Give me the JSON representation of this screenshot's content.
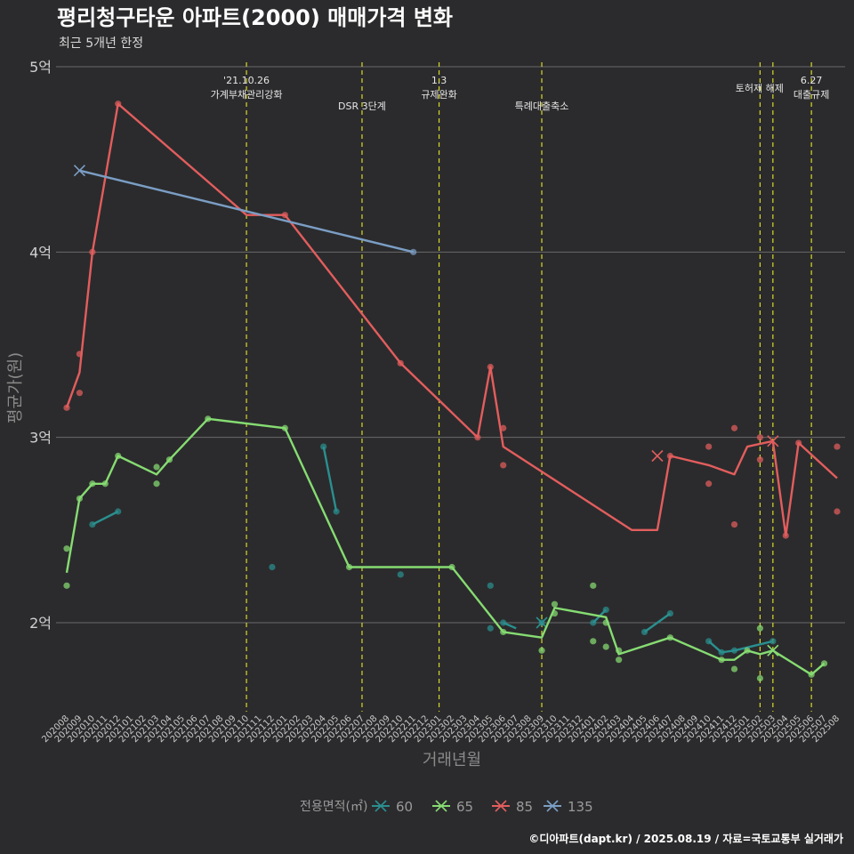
{
  "chart_data": {
    "type": "line",
    "title": "평리청구타운 아파트(2000) 매매가격 변화",
    "subtitle": "최근 5개년 한정",
    "xlabel": "거래년월",
    "ylabel": "평균가(원)",
    "caption": "©디아파트(dapt.kr) / 2025.08.19 / 자료=국토교통부 실거래가",
    "legend": {
      "title": "전용면적(㎡)",
      "position": "bottom"
    },
    "ylim": [
      1.55,
      5.0
    ],
    "y_ticks": [
      {
        "value": 2,
        "label": "2억"
      },
      {
        "value": 3,
        "label": "3억"
      },
      {
        "value": 4,
        "label": "4억"
      },
      {
        "value": 5,
        "label": "5억"
      }
    ],
    "categories": [
      "202008",
      "202009",
      "202010",
      "202011",
      "202012",
      "202101",
      "202102",
      "202103",
      "202104",
      "202105",
      "202106",
      "202107",
      "202108",
      "202109",
      "202110",
      "202111",
      "202112",
      "202201",
      "202202",
      "202203",
      "202204",
      "202205",
      "202206",
      "202207",
      "202208",
      "202209",
      "202210",
      "202211",
      "202212",
      "202301",
      "202302",
      "202303",
      "202304",
      "202305",
      "202306",
      "202307",
      "202308",
      "202309",
      "202310",
      "202311",
      "202312",
      "202401",
      "202402",
      "202403",
      "202404",
      "202405",
      "202406",
      "202407",
      "202408",
      "202409",
      "202410",
      "202411",
      "202412",
      "202501",
      "202502",
      "202503",
      "202504",
      "202505",
      "202506",
      "202507",
      "202508"
    ],
    "annotations": [
      {
        "x": "202110",
        "lines": [
          "'21.10.26",
          "가계부채관리강화"
        ],
        "row": 0
      },
      {
        "x": "202207",
        "lines": [
          "DSR 3단계"
        ],
        "row": 1
      },
      {
        "x": "202301",
        "lines": [
          "1.3",
          "규제완화"
        ],
        "row": 0
      },
      {
        "x": "202309",
        "lines": [
          "특례대출축소"
        ],
        "row": 1
      },
      {
        "x": "202502",
        "lines": [
          "토허제 해제"
        ],
        "row": 0,
        "line_only": true
      },
      {
        "x": "202503",
        "lines": [
          "토허제 해제"
        ],
        "row": 0
      },
      {
        "x": "202506",
        "lines": [
          "6.27",
          "대출규제"
        ],
        "row": 0
      }
    ],
    "series": [
      {
        "name": "60",
        "color": "#2a8f8f",
        "segments": [
          [
            [
              "202010",
              2.53
            ],
            [
              "202012",
              2.6
            ]
          ],
          [
            [
              "202204",
              2.95
            ],
            [
              "202205",
              2.6
            ]
          ],
          [
            [
              "202306",
              2.0
            ],
            [
              "202307",
              1.97
            ]
          ],
          [
            [
              "202309",
              2.0
            ]
          ],
          [
            [
              "202401",
              2.0
            ],
            [
              "202402",
              2.07
            ]
          ],
          [
            [
              "202405",
              1.95
            ],
            [
              "202407",
              2.05
            ]
          ],
          [
            [
              "202410",
              1.9
            ],
            [
              "202411",
              1.84
            ],
            [
              "202412",
              1.85
            ],
            [
              "202503",
              1.9
            ]
          ]
        ],
        "points": [
          [
            "202010",
            2.53
          ],
          [
            "202012",
            2.6
          ],
          [
            "202112",
            2.3
          ],
          [
            "202204",
            2.95
          ],
          [
            "202205",
            2.6
          ],
          [
            "202210",
            2.26
          ],
          [
            "202305",
            2.2
          ],
          [
            "202305",
            1.97
          ],
          [
            "202306",
            2.0
          ],
          [
            "202309",
            2.0
          ],
          [
            "202402",
            2.07
          ],
          [
            "202401",
            2.0
          ],
          [
            "202405",
            1.95
          ],
          [
            "202407",
            2.05
          ],
          [
            "202410",
            1.9
          ],
          [
            "202411",
            1.84
          ],
          [
            "202412",
            1.85
          ],
          [
            "202503",
            1.9
          ]
        ],
        "x_markers": [
          [
            "202309",
            2.0
          ]
        ]
      },
      {
        "name": "65",
        "color": "#86dc72",
        "segments": [
          [
            [
              "202008",
              2.27
            ],
            [
              "202009",
              2.67
            ],
            [
              "202010",
              2.75
            ],
            [
              "202011",
              2.75
            ],
            [
              "202012",
              2.9
            ],
            [
              "202103",
              2.8
            ],
            [
              "202104",
              2.88
            ],
            [
              "202107",
              3.1
            ],
            [
              "202201",
              3.05
            ],
            [
              "202206",
              2.3
            ],
            [
              "202302",
              2.3
            ],
            [
              "202306",
              1.95
            ],
            [
              "202309",
              1.92
            ],
            [
              "202310",
              2.08
            ],
            [
              "202402",
              2.03
            ],
            [
              "202403",
              1.83
            ],
            [
              "202407",
              1.92
            ],
            [
              "202411",
              1.8
            ],
            [
              "202412",
              1.8
            ],
            [
              "202501",
              1.85
            ],
            [
              "202502",
              1.83
            ],
            [
              "202503",
              1.85
            ],
            [
              "202506",
              1.72
            ],
            [
              "202507",
              1.78
            ]
          ]
        ],
        "points": [
          [
            "202008",
            2.4
          ],
          [
            "202008",
            2.2
          ],
          [
            "202009",
            2.67
          ],
          [
            "202010",
            2.75
          ],
          [
            "202011",
            2.75
          ],
          [
            "202012",
            2.9
          ],
          [
            "202103",
            2.84
          ],
          [
            "202103",
            2.75
          ],
          [
            "202104",
            2.88
          ],
          [
            "202107",
            3.1
          ],
          [
            "202201",
            3.05
          ],
          [
            "202206",
            2.3
          ],
          [
            "202302",
            2.3
          ],
          [
            "202306",
            1.95
          ],
          [
            "202309",
            1.85
          ],
          [
            "202310",
            2.1
          ],
          [
            "202310",
            2.05
          ],
          [
            "202401",
            2.2
          ],
          [
            "202401",
            1.9
          ],
          [
            "202402",
            1.87
          ],
          [
            "202402",
            2.0
          ],
          [
            "202403",
            1.85
          ],
          [
            "202403",
            1.8
          ],
          [
            "202407",
            1.92
          ],
          [
            "202411",
            1.8
          ],
          [
            "202412",
            1.75
          ],
          [
            "202501",
            1.85
          ],
          [
            "202502",
            1.97
          ],
          [
            "202502",
            1.7
          ],
          [
            "202506",
            1.72
          ],
          [
            "202507",
            1.78
          ]
        ],
        "x_markers": [
          [
            "202503",
            1.85
          ]
        ]
      },
      {
        "name": "85",
        "color": "#e35d5d",
        "segments": [
          [
            [
              "202008",
              3.16
            ],
            [
              "202009",
              3.35
            ],
            [
              "202010",
              4.0
            ],
            [
              "202012",
              4.8
            ],
            [
              "202110",
              4.2
            ],
            [
              "202201",
              4.2
            ],
            [
              "202210",
              3.4
            ],
            [
              "202304",
              3.0
            ],
            [
              "202305",
              3.38
            ],
            [
              "202306",
              2.95
            ],
            [
              "202404",
              2.5
            ],
            [
              "202406",
              2.5
            ],
            [
              "202407",
              2.9
            ],
            [
              "202410",
              2.85
            ],
            [
              "202412",
              2.8
            ],
            [
              "202501",
              2.95
            ],
            [
              "202503",
              2.98
            ],
            [
              "202504",
              2.47
            ],
            [
              "202505",
              2.97
            ],
            [
              "202508",
              2.78
            ]
          ]
        ],
        "points": [
          [
            "202008",
            3.16
          ],
          [
            "202009",
            3.45
          ],
          [
            "202009",
            3.24
          ],
          [
            "202010",
            4.0
          ],
          [
            "202012",
            4.8
          ],
          [
            "202201",
            4.2
          ],
          [
            "202210",
            3.4
          ],
          [
            "202304",
            3.0
          ],
          [
            "202305",
            3.38
          ],
          [
            "202306",
            3.05
          ],
          [
            "202306",
            2.85
          ],
          [
            "202407",
            2.9
          ],
          [
            "202410",
            2.95
          ],
          [
            "202410",
            2.75
          ],
          [
            "202502",
            3.0
          ],
          [
            "202412",
            3.05
          ],
          [
            "202412",
            2.53
          ],
          [
            "202502",
            2.88
          ],
          [
            "202504",
            2.47
          ],
          [
            "202505",
            2.97
          ],
          [
            "202508",
            2.95
          ],
          [
            "202508",
            2.6
          ]
        ],
        "x_markers": [
          [
            "202406",
            2.9
          ],
          [
            "202503",
            2.98
          ]
        ]
      },
      {
        "name": "135",
        "color": "#7b9ec5",
        "segments": [
          [
            [
              "202009",
              4.44
            ],
            [
              "202211",
              4.0
            ]
          ]
        ],
        "points": [
          [
            "202211",
            4.0
          ]
        ],
        "x_markers": [
          [
            "202009",
            4.44
          ]
        ]
      }
    ]
  }
}
